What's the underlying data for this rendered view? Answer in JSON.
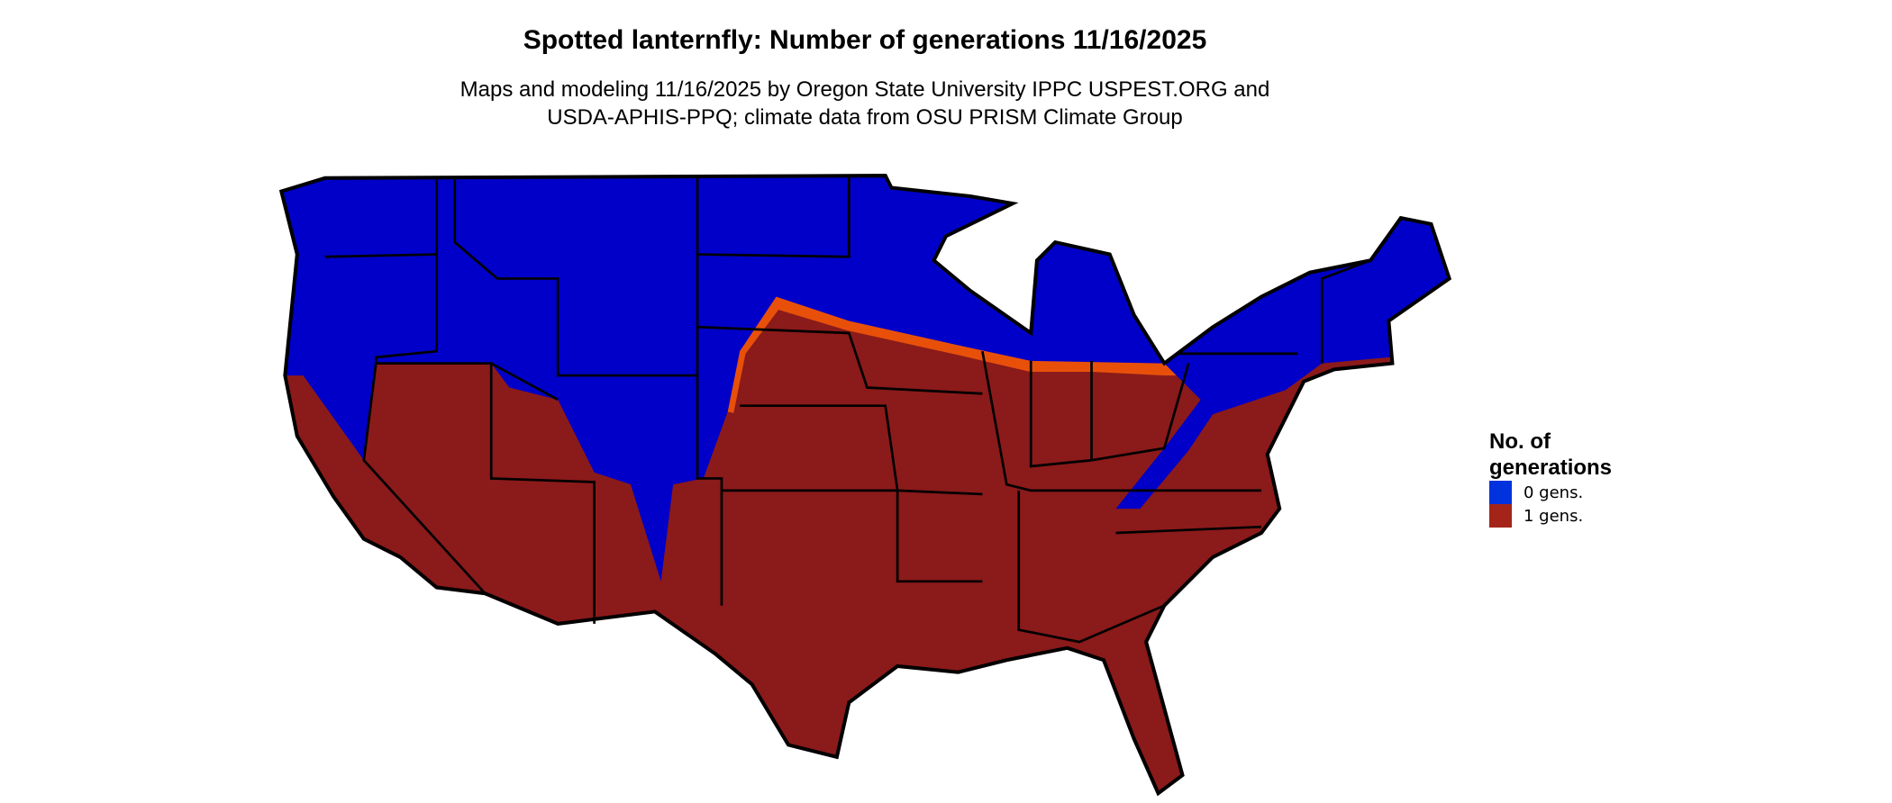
{
  "title": "Spotted lanternfly: Number of generations 11/16/2025",
  "subtitle": [
    "Maps and modeling 11/16/2025 by Oregon State University IPPC USPEST.ORG and",
    "USDA-APHIS-PPQ; climate data from OSU PRISM Climate Group"
  ],
  "legend": {
    "title": "No. of generations",
    "entries": [
      {
        "label": "0 gens.",
        "color": "#0033dd"
      },
      {
        "label": "1 gens.",
        "color": "#a5241a"
      }
    ]
  },
  "map": {
    "region": "Contiguous United States",
    "colors": {
      "zero_generations": "#0000c8",
      "one_generation": "#8b1a1a",
      "transition": "#e8500a",
      "borders": "#000000"
    }
  }
}
